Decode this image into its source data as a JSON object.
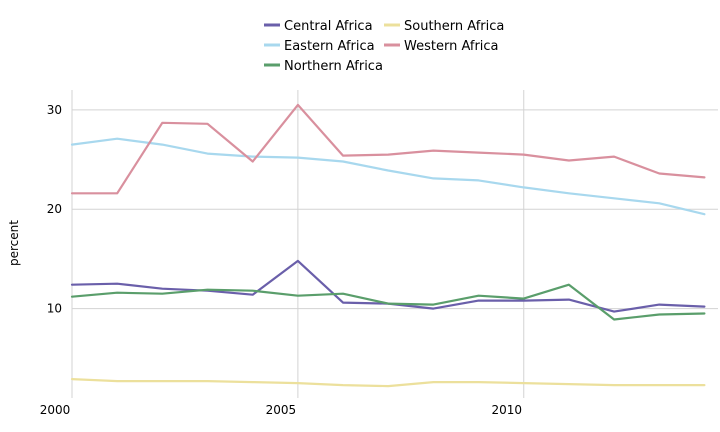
{
  "chart_data": {
    "type": "line",
    "xlabel": "",
    "ylabel": "percent",
    "xlim": [
      2000,
      2014.3
    ],
    "ylim": [
      1,
      32
    ],
    "x_ticks": [
      2000,
      2005,
      2010
    ],
    "y_ticks": [
      10,
      20,
      30
    ],
    "grid": true,
    "legend_position": "top",
    "x": [
      2000,
      2001,
      2002,
      2003,
      2004,
      2005,
      2006,
      2007,
      2008,
      2009,
      2010,
      2011,
      2012,
      2013,
      2014
    ],
    "series": [
      {
        "name": "Central Africa",
        "color": "#6a5faa",
        "values": [
          12.4,
          12.5,
          12.0,
          11.8,
          11.4,
          14.8,
          10.6,
          10.5,
          10.0,
          10.8,
          10.8,
          10.9,
          9.7,
          10.4,
          10.2
        ]
      },
      {
        "name": "Eastern Africa",
        "color": "#a8d8ee",
        "values": [
          26.5,
          27.1,
          26.5,
          25.6,
          25.3,
          25.2,
          24.8,
          23.9,
          23.1,
          22.9,
          22.2,
          21.6,
          21.1,
          20.6,
          19.5
        ]
      },
      {
        "name": "Northern Africa",
        "color": "#5a9e6b",
        "values": [
          11.2,
          11.6,
          11.5,
          11.9,
          11.8,
          11.3,
          11.5,
          10.5,
          10.4,
          11.3,
          11.0,
          12.4,
          8.9,
          9.4,
          9.5
        ]
      },
      {
        "name": "Southern Africa",
        "color": "#ece09c",
        "values": [
          2.9,
          2.7,
          2.7,
          2.7,
          2.6,
          2.5,
          2.3,
          2.2,
          2.6,
          2.6,
          2.5,
          2.4,
          2.3,
          2.3,
          2.3
        ]
      },
      {
        "name": "Western Africa",
        "color": "#d9909e",
        "values": [
          21.6,
          21.6,
          28.7,
          28.6,
          24.8,
          30.5,
          25.4,
          25.5,
          25.9,
          25.7,
          25.5,
          24.9,
          25.3,
          23.6,
          23.2
        ]
      }
    ]
  }
}
